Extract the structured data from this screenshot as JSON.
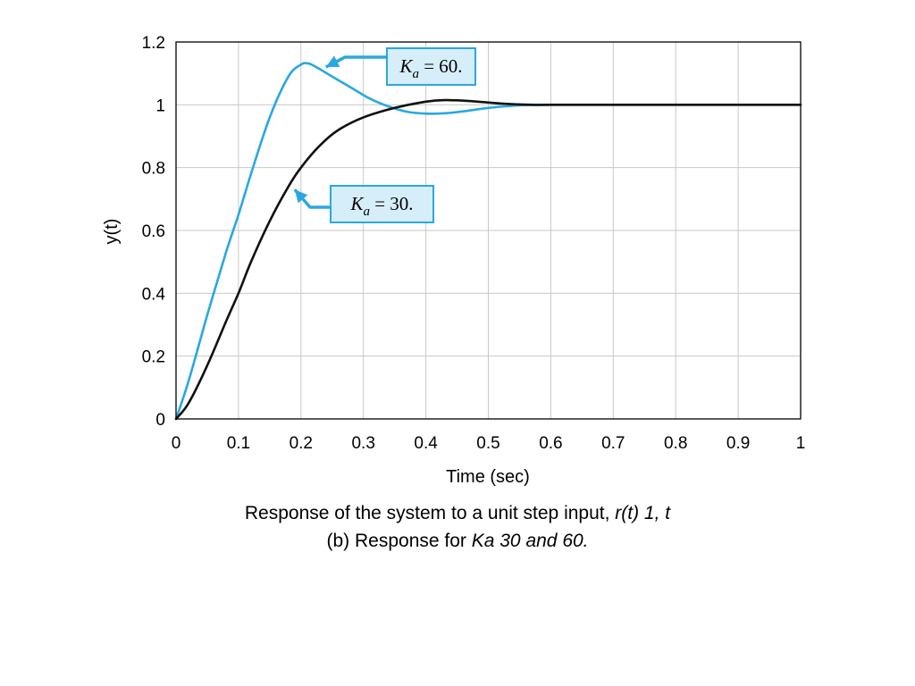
{
  "chart_data": {
    "type": "line",
    "xlabel": "Time (sec)",
    "ylabel": "y(t)",
    "xlim": [
      0,
      1
    ],
    "ylim": [
      0,
      1.2
    ],
    "x_ticks": [
      "0",
      "0.1",
      "0.2",
      "0.3",
      "0.4",
      "0.5",
      "0.6",
      "0.7",
      "0.8",
      "0.9",
      "1"
    ],
    "y_ticks": [
      "0",
      "0.2",
      "0.4",
      "0.6",
      "0.8",
      "1",
      "1.2"
    ],
    "grid": true,
    "series": [
      {
        "name": "Ka = 60.",
        "color": "#29a8e0",
        "x": [
          0,
          0.02,
          0.05,
          0.08,
          0.1,
          0.12,
          0.15,
          0.18,
          0.2,
          0.21,
          0.22,
          0.25,
          0.28,
          0.31,
          0.34,
          0.37,
          0.4,
          0.43,
          0.46,
          0.5,
          0.55,
          0.6,
          0.7,
          0.8,
          0.9,
          1.0
        ],
        "y": [
          0,
          0.12,
          0.33,
          0.53,
          0.65,
          0.78,
          0.96,
          1.09,
          1.128,
          1.132,
          1.125,
          1.09,
          1.055,
          1.02,
          0.995,
          0.978,
          0.972,
          0.973,
          0.979,
          0.99,
          0.998,
          1.0,
          1.0,
          1.0,
          1.0,
          1.0
        ]
      },
      {
        "name": "Ka = 30.",
        "color": "#111111",
        "x": [
          0,
          0.02,
          0.05,
          0.08,
          0.1,
          0.12,
          0.15,
          0.18,
          0.2,
          0.23,
          0.26,
          0.3,
          0.35,
          0.4,
          0.43,
          0.47,
          0.52,
          0.57,
          0.6,
          0.7,
          0.8,
          0.9,
          1.0
        ],
        "y": [
          0,
          0.05,
          0.17,
          0.31,
          0.4,
          0.5,
          0.63,
          0.74,
          0.8,
          0.87,
          0.92,
          0.96,
          0.99,
          1.01,
          1.015,
          1.012,
          1.004,
          1.0,
          1.0,
          1.0,
          1.0,
          1.0,
          1.0
        ]
      }
    ],
    "annotations": [
      {
        "label": "K_a = 60.",
        "symbol": "K",
        "subscript": "a",
        "rest": " = 60.",
        "points_to": [
          0.24,
          1.12
        ]
      },
      {
        "label": "K_a = 30.",
        "symbol": "K",
        "subscript": "a",
        "rest": " = 30.",
        "points_to": [
          0.19,
          0.73
        ]
      }
    ]
  },
  "caption": {
    "line1_plain": "Response of the system to a unit step input, ",
    "line1_italic": "r(t)  1, t",
    "line2_plain": "(b) Response for ",
    "line2_italic": "Ka  30 and 60."
  }
}
